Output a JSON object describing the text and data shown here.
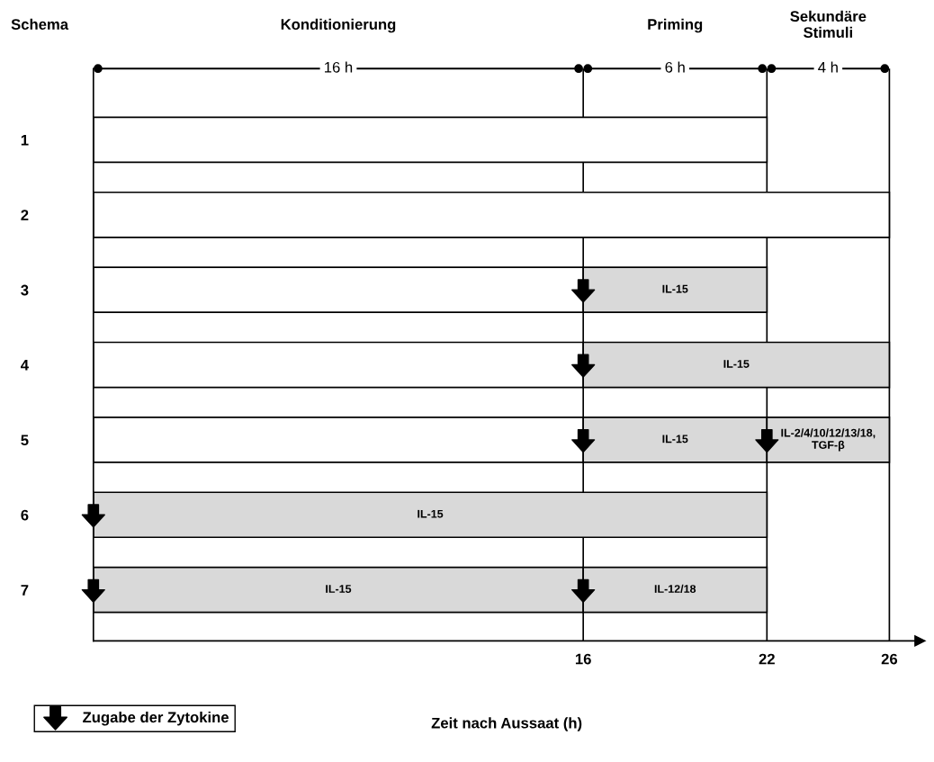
{
  "chart_data": {
    "type": "bar",
    "orientation": "horizontal",
    "stacked": true,
    "ylabel": "Schema",
    "xlabel": "Zeit nach Aussaat (h)",
    "categories": [
      "1",
      "2",
      "3",
      "4",
      "5",
      "6",
      "7"
    ],
    "series": [
      {
        "values": [
          22,
          26,
          16,
          16,
          16,
          22,
          16
        ],
        "colors": [
          "#ffffff",
          "#ffffff",
          "#ffffff",
          "#ffffff",
          "#ffffff",
          "#d9d9d9",
          "#d9d9d9"
        ],
        "value_labels": [
          null,
          null,
          null,
          null,
          null,
          "IL-15",
          "IL-15"
        ]
      },
      {
        "values": [
          null,
          null,
          6,
          10,
          6,
          null,
          6
        ],
        "color": "#d9d9d9",
        "value_labels": [
          null,
          null,
          "IL-15",
          "IL-15",
          "IL-15",
          null,
          "IL-12/18"
        ]
      },
      {
        "values": [
          null,
          null,
          null,
          null,
          4,
          null,
          null
        ],
        "color": "#d9d9d9",
        "value_labels": [
          null,
          null,
          null,
          null,
          "IL-2/4/10/12/13/18,\nTGF-β",
          null,
          null
        ]
      },
      {
        "type": "scatter",
        "name": "Zugabe der Zytokine",
        "color": "#000000",
        "x": [
          "3",
          "4",
          "5",
          "5",
          "6",
          "7",
          "7"
        ],
        "values": [
          16,
          16,
          16,
          22,
          0,
          0,
          16
        ]
      }
    ],
    "xlim": [
      0,
      27
    ],
    "xticks": [
      16,
      22,
      26
    ],
    "ref_lines": [
      {
        "axis": "x",
        "value": 16
      },
      {
        "axis": "x",
        "value": 22
      },
      {
        "axis": "x",
        "value": 26
      }
    ],
    "annotations": [
      "Konditionierung",
      "Priming",
      "Sekundäre\nStimuli",
      "16 h",
      "6 h",
      "4 h"
    ],
    "legend": "bottom left",
    "grid": false
  }
}
